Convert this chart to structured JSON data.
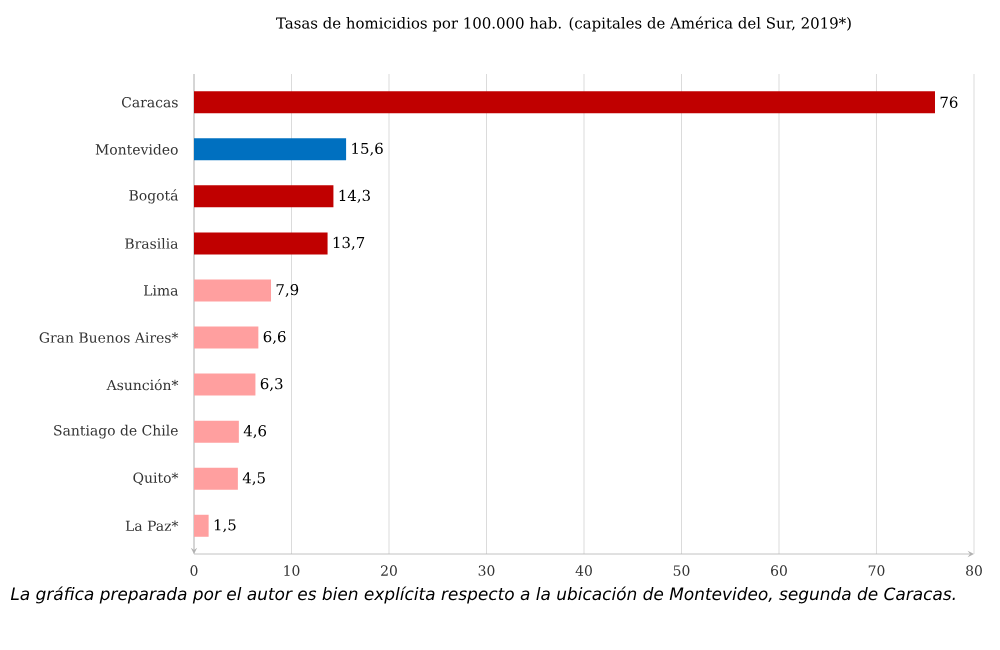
{
  "chart_data": {
    "type": "bar",
    "orientation": "horizontal",
    "title": "Tasas de homicidios  por 100.000 hab. (capitales de América del Sur, 2019*)",
    "categories": [
      "Caracas",
      "Montevideo",
      "Bogotá",
      "Brasilia",
      "Lima",
      "Gran Buenos Aires*",
      "Asunción*",
      "Santiago de Chile",
      "Quito*",
      "La Paz*"
    ],
    "values": [
      76,
      15.6,
      14.3,
      13.7,
      7.9,
      6.6,
      6.3,
      4.6,
      4.5,
      1.5
    ],
    "value_labels": [
      "76",
      "15,6",
      "14,3",
      "13,7",
      "7,9",
      "6,6",
      "6,3",
      "4,6",
      "4,5",
      "1,5"
    ],
    "colors": [
      "#c00000",
      "#0070c0",
      "#c00000",
      "#c00000",
      "#ff9f9f",
      "#ff9f9f",
      "#ff9f9f",
      "#ff9f9f",
      "#ff9f9f",
      "#ff9f9f"
    ],
    "xlim": [
      0,
      80
    ],
    "xticks": [
      0,
      10,
      20,
      30,
      40,
      50,
      60,
      70,
      80
    ],
    "grid": "x",
    "annotations": [
      "La gráfica preparada por el autor es bien explícita respecto a la ubicación de Montevideo, segunda de Caracas."
    ]
  }
}
